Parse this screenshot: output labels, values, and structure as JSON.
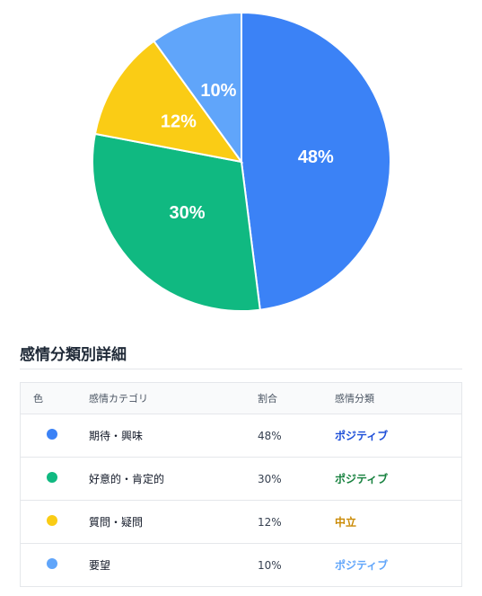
{
  "chart_data": {
    "type": "pie",
    "slices": [
      {
        "label": "48%",
        "value": 48,
        "color": "#3b82f6"
      },
      {
        "label": "30%",
        "value": 30,
        "color": "#10b981"
      },
      {
        "label": "12%",
        "value": 12,
        "color": "#facc15"
      },
      {
        "label": "10%",
        "value": 10,
        "color": "#60a5fa"
      }
    ]
  },
  "section": {
    "title": "感情分類別詳細"
  },
  "table": {
    "headers": {
      "color": "色",
      "category": "感情カテゴリ",
      "ratio": "割合",
      "sentiment": "感情分類"
    },
    "rows": [
      {
        "color": "#3b82f6",
        "category": "期待・興味",
        "ratio": "48%",
        "sentiment": "ポジティブ",
        "sentiment_color": "#1d4ed8"
      },
      {
        "color": "#10b981",
        "category": "好意的・肯定的",
        "ratio": "30%",
        "sentiment": "ポジティブ",
        "sentiment_color": "#15803d"
      },
      {
        "color": "#facc15",
        "category": "質問・疑問",
        "ratio": "12%",
        "sentiment": "中立",
        "sentiment_color": "#ca8a04"
      },
      {
        "color": "#60a5fa",
        "category": "要望",
        "ratio": "10%",
        "sentiment": "ポジティブ",
        "sentiment_color": "#60a5fa"
      }
    ]
  }
}
